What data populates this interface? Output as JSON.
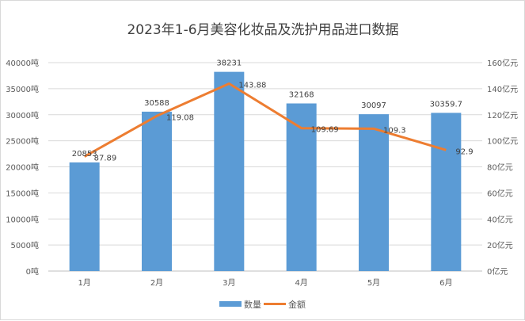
{
  "chart_data": {
    "type": "bar+line",
    "title": "2023年1-6月美容化妆品及洗护用品进口数据",
    "categories": [
      "1月",
      "2月",
      "3月",
      "4月",
      "5月",
      "6月"
    ],
    "series": [
      {
        "name": "数量",
        "type": "bar",
        "axis": "left",
        "unit": "吨",
        "values": [
          20853,
          30588,
          38231,
          32168,
          30097,
          30359.7
        ],
        "labels": [
          "20853",
          "30588",
          "38231",
          "32168",
          "30097",
          "30359.7"
        ],
        "color": "#5b9bd5"
      },
      {
        "name": "金额",
        "type": "line",
        "axis": "right",
        "unit": "亿元",
        "values": [
          87.89,
          119.08,
          143.88,
          109.69,
          109.3,
          92.9
        ],
        "labels": [
          "87.89",
          "119.08",
          "143.88",
          "109.69",
          "109.3",
          "92.9"
        ],
        "color": "#ed7d31"
      }
    ],
    "y_left": {
      "range": [
        0,
        40000
      ],
      "ticks": [
        "0吨",
        "5000吨",
        "10000吨",
        "15000吨",
        "20000吨",
        "25000吨",
        "30000吨",
        "35000吨",
        "40000吨"
      ]
    },
    "y_right": {
      "range": [
        0,
        160
      ],
      "ticks": [
        "0亿元",
        "20亿元",
        "40亿元",
        "60亿元",
        "80亿元",
        "100亿元",
        "120亿元",
        "140亿元",
        "160亿元"
      ]
    },
    "grid": true,
    "legend": "bottom"
  }
}
